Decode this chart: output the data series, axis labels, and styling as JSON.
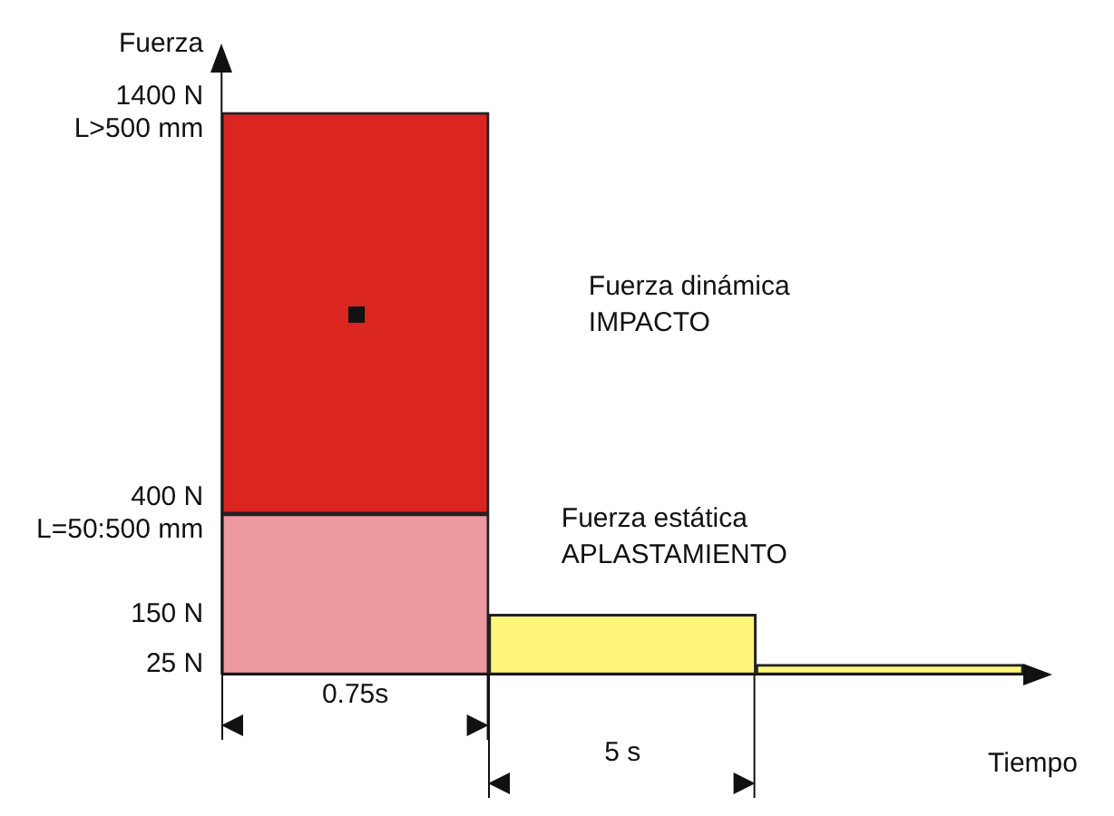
{
  "chart_data": {
    "type": "bar",
    "stacked": true,
    "ylabel": "Fuerza",
    "xlabel": "Tiempo",
    "categories": [
      null,
      null,
      null
    ],
    "series": [
      {
        "color": "#ec9aa0",
        "values": [
          400,
          null,
          null
        ]
      },
      {
        "color": "#da2520",
        "values": [
          1000,
          null,
          null
        ]
      },
      {
        "color": "#fff57a",
        "values": [
          null,
          150,
          25
        ]
      }
    ],
    "ylim": [
      0,
      1500
    ],
    "yticks": [
      {
        "value": 25,
        "label": "25 N"
      },
      {
        "value": 150,
        "label": "150 N"
      },
      {
        "value": 400,
        "label": "400 N\nL=50:500 mm"
      },
      {
        "value": 1400,
        "label": "1400 N\nL>500 mm"
      }
    ],
    "grid": false,
    "legend": false,
    "annotations": [
      "Fuerza dinámica\nIMPACTO",
      "Fuerza estática\nAPLASTAMIENTO",
      "0.75s",
      "5 s"
    ]
  }
}
